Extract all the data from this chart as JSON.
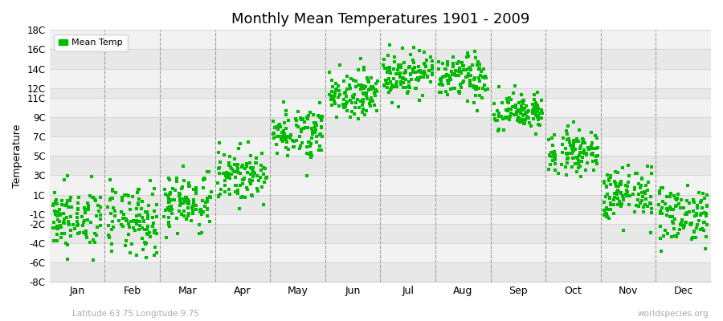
{
  "title": "Monthly Mean Temperatures 1901 - 2009",
  "ylabel": "Temperature",
  "xlabel_bottom_left": "Latitude 63.75 Longitude 9.75",
  "xlabel_bottom_right": "worldspecies.org",
  "dot_color": "#00BB00",
  "dot_size": 5,
  "ylim": [
    -8,
    18
  ],
  "ytick_vals": [
    -8,
    -6,
    -4,
    -2,
    -1,
    1,
    3,
    5,
    7,
    9,
    11,
    12,
    14,
    16,
    18
  ],
  "ytick_labels": [
    "-8C",
    "-6C",
    "-4C",
    "-2C",
    "-1C",
    "1C",
    "3C",
    "5C",
    "7C",
    "9C",
    "11C",
    "12C",
    "14C",
    "16C",
    "18C"
  ],
  "band_boundaries": [
    -8,
    -6,
    -4,
    -2,
    -1,
    1,
    3,
    5,
    7,
    9,
    11,
    12,
    14,
    16,
    18
  ],
  "band_colors": [
    "#e8e8e8",
    "#f2f2f2"
  ],
  "months": [
    "Jan",
    "Feb",
    "Mar",
    "Apr",
    "May",
    "Jun",
    "Jul",
    "Aug",
    "Sep",
    "Oct",
    "Nov",
    "Dec"
  ],
  "legend_label": "Mean Temp",
  "fig_bg_color": "#ffffff",
  "monthly_means": [
    -1.5,
    -1.8,
    0.3,
    3.0,
    7.5,
    11.5,
    13.5,
    13.0,
    9.5,
    5.5,
    1.0,
    -1.0
  ],
  "monthly_stds": [
    1.6,
    1.8,
    1.5,
    1.3,
    1.3,
    1.2,
    1.2,
    1.2,
    1.0,
    1.1,
    1.4,
    1.5
  ],
  "n_years": 109
}
